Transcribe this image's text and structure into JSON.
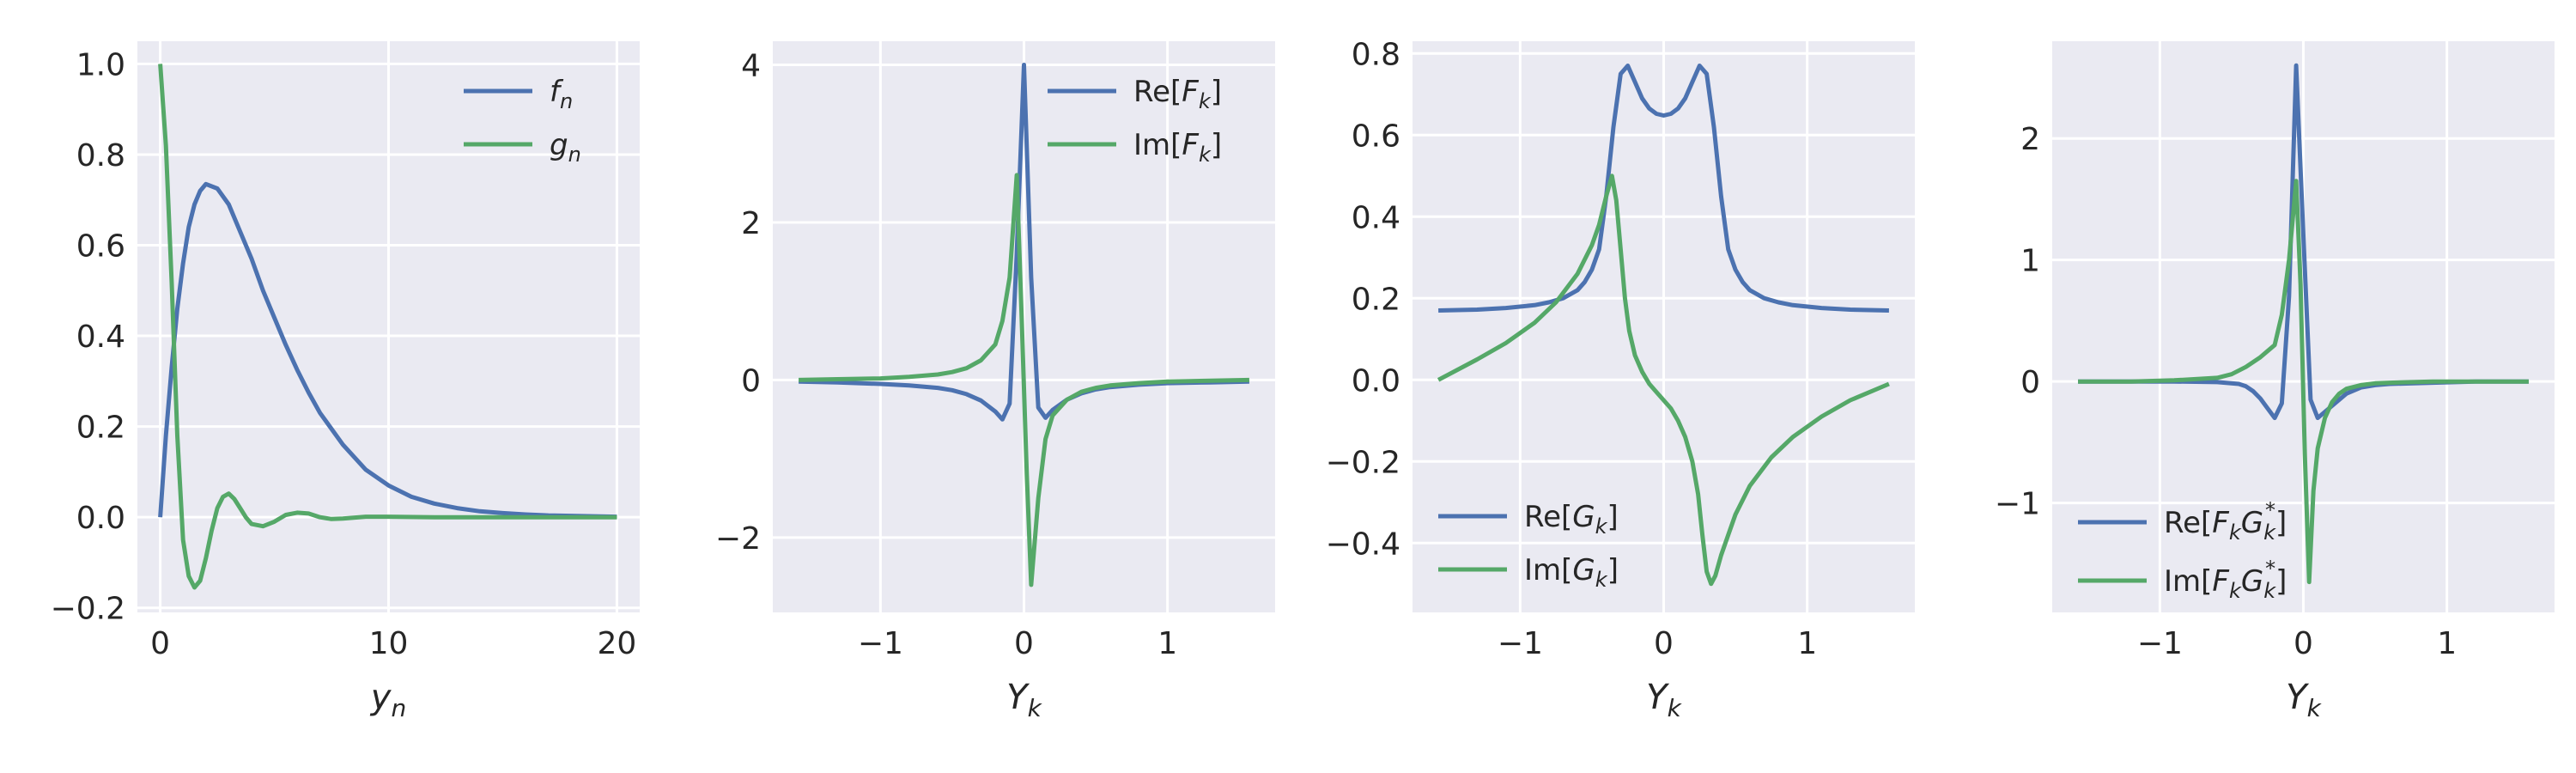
{
  "colors": {
    "background": "#eaeaf2",
    "grid": "#ffffff",
    "series1": "#4c72b0",
    "series2": "#55a868",
    "text": "#262626"
  },
  "chart_data": [
    {
      "type": "line",
      "xlabel": {
        "base": "y",
        "sub": "n"
      },
      "xlim": [
        -1,
        21
      ],
      "ylim": [
        -0.21,
        1.05
      ],
      "xticks": [
        0,
        10,
        20
      ],
      "yticks": [
        -0.2,
        0.0,
        0.2,
        0.4,
        0.6,
        0.8,
        1.0
      ],
      "xtick_labels": [
        "0",
        "10",
        "20"
      ],
      "ytick_labels": [
        "−0.2",
        "0.0",
        "0.2",
        "0.4",
        "0.6",
        "0.8",
        "1.0"
      ],
      "grid": true,
      "legend_placement": "top-right",
      "series": [
        {
          "name": {
            "base": "f",
            "sub": "n"
          },
          "color": "#4c72b0",
          "x": [
            0,
            0.25,
            0.5,
            0.75,
            1,
            1.25,
            1.5,
            1.75,
            2,
            2.5,
            3,
            3.5,
            4,
            4.5,
            5,
            5.5,
            6,
            6.5,
            7,
            8,
            9,
            10,
            11,
            12,
            13,
            14,
            15,
            16,
            17,
            18,
            19,
            20
          ],
          "y": [
            0,
            0.18,
            0.33,
            0.46,
            0.56,
            0.64,
            0.69,
            0.72,
            0.735,
            0.725,
            0.69,
            0.63,
            0.57,
            0.5,
            0.44,
            0.38,
            0.325,
            0.275,
            0.23,
            0.16,
            0.105,
            0.07,
            0.045,
            0.03,
            0.02,
            0.013,
            0.009,
            0.006,
            0.004,
            0.003,
            0.002,
            0.001
          ]
        },
        {
          "name": {
            "base": "g",
            "sub": "n"
          },
          "color": "#55a868",
          "x": [
            0,
            0.25,
            0.5,
            0.75,
            1,
            1.25,
            1.5,
            1.75,
            2,
            2.25,
            2.5,
            2.75,
            3,
            3.25,
            3.5,
            3.75,
            4,
            4.5,
            5,
            5.5,
            6,
            6.5,
            7,
            7.5,
            8,
            9,
            10,
            12,
            14,
            16,
            18,
            20
          ],
          "y": [
            1.0,
            0.82,
            0.52,
            0.18,
            -0.05,
            -0.13,
            -0.155,
            -0.14,
            -0.09,
            -0.03,
            0.02,
            0.045,
            0.052,
            0.04,
            0.02,
            0.0,
            -0.015,
            -0.02,
            -0.01,
            0.005,
            0.01,
            0.008,
            0.0,
            -0.004,
            -0.003,
            0.001,
            0.001,
            0,
            0,
            0,
            0,
            0
          ]
        }
      ]
    },
    {
      "type": "line",
      "xlabel": {
        "base": "Y",
        "sub": "k"
      },
      "xlim": [
        -1.75,
        1.75
      ],
      "ylim": [
        -2.95,
        4.3
      ],
      "xticks": [
        -1,
        0,
        1
      ],
      "yticks": [
        -2,
        0,
        2,
        4
      ],
      "xtick_labels": [
        "−1",
        "0",
        "1"
      ],
      "ytick_labels": [
        "−2",
        "0",
        "2",
        "4"
      ],
      "grid": true,
      "legend_placement": "top-right",
      "series": [
        {
          "name": {
            "pre": "Re[",
            "base": "F",
            "sub": "k",
            "post": "]"
          },
          "color": "#4c72b0",
          "x": [
            -1.57,
            -1.3,
            -1.0,
            -0.8,
            -0.6,
            -0.5,
            -0.4,
            -0.3,
            -0.2,
            -0.15,
            -0.1,
            -0.05,
            0,
            0.05,
            0.1,
            0.15,
            0.2,
            0.3,
            0.4,
            0.5,
            0.6,
            0.8,
            1.0,
            1.3,
            1.57
          ],
          "y": [
            -0.02,
            -0.03,
            -0.05,
            -0.07,
            -0.1,
            -0.13,
            -0.18,
            -0.26,
            -0.4,
            -0.5,
            -0.3,
            1.6,
            4.0,
            1.3,
            -0.35,
            -0.48,
            -0.38,
            -0.25,
            -0.17,
            -0.12,
            -0.09,
            -0.06,
            -0.04,
            -0.03,
            -0.02
          ]
        },
        {
          "name": {
            "pre": "Im[",
            "base": "F",
            "sub": "k",
            "post": "]"
          },
          "color": "#55a868",
          "x": [
            -1.57,
            -1.3,
            -1.0,
            -0.8,
            -0.6,
            -0.5,
            -0.4,
            -0.3,
            -0.2,
            -0.15,
            -0.1,
            -0.05,
            -0.02,
            0.02,
            0.05,
            0.1,
            0.15,
            0.2,
            0.3,
            0.4,
            0.5,
            0.6,
            0.8,
            1.0,
            1.3,
            1.57
          ],
          "y": [
            0.0,
            0.01,
            0.02,
            0.04,
            0.07,
            0.1,
            0.15,
            0.25,
            0.45,
            0.75,
            1.3,
            2.6,
            1.0,
            -1.2,
            -2.6,
            -1.5,
            -0.75,
            -0.45,
            -0.25,
            -0.15,
            -0.1,
            -0.07,
            -0.04,
            -0.02,
            -0.01,
            0.0
          ]
        }
      ]
    },
    {
      "type": "line",
      "xlabel": {
        "base": "Y",
        "sub": "k"
      },
      "xlim": [
        -1.75,
        1.75
      ],
      "ylim": [
        -0.57,
        0.83
      ],
      "xticks": [
        -1,
        0,
        1
      ],
      "yticks": [
        -0.4,
        -0.2,
        0.0,
        0.2,
        0.4,
        0.6,
        0.8
      ],
      "xtick_labels": [
        "−1",
        "0",
        "1"
      ],
      "ytick_labels": [
        "−0.4",
        "−0.2",
        "0.0",
        "0.2",
        "0.4",
        "0.6",
        "0.8"
      ],
      "grid": true,
      "legend_placement": "bottom-left",
      "series": [
        {
          "name": {
            "pre": "Re[",
            "base": "G",
            "sub": "k",
            "post": "]"
          },
          "color": "#4c72b0",
          "x": [
            -1.57,
            -1.3,
            -1.1,
            -0.9,
            -0.8,
            -0.7,
            -0.6,
            -0.55,
            -0.5,
            -0.45,
            -0.4,
            -0.35,
            -0.3,
            -0.25,
            -0.2,
            -0.15,
            -0.1,
            -0.05,
            0,
            0.05,
            0.1,
            0.15,
            0.2,
            0.25,
            0.3,
            0.35,
            0.4,
            0.45,
            0.5,
            0.55,
            0.6,
            0.7,
            0.8,
            0.9,
            1.1,
            1.3,
            1.57
          ],
          "y": [
            0.17,
            0.172,
            0.176,
            0.183,
            0.19,
            0.2,
            0.22,
            0.24,
            0.27,
            0.32,
            0.45,
            0.62,
            0.75,
            0.77,
            0.73,
            0.69,
            0.665,
            0.652,
            0.648,
            0.652,
            0.665,
            0.69,
            0.73,
            0.77,
            0.75,
            0.62,
            0.45,
            0.32,
            0.27,
            0.24,
            0.22,
            0.2,
            0.19,
            0.183,
            0.176,
            0.172,
            0.17
          ]
        },
        {
          "name": {
            "pre": "Im[",
            "base": "G",
            "sub": "k",
            "post": "]"
          },
          "color": "#55a868",
          "x": [
            -1.57,
            -1.3,
            -1.1,
            -0.9,
            -0.75,
            -0.6,
            -0.5,
            -0.45,
            -0.4,
            -0.36,
            -0.33,
            -0.3,
            -0.27,
            -0.24,
            -0.2,
            -0.15,
            -0.1,
            -0.05,
            0,
            0.05,
            0.1,
            0.15,
            0.2,
            0.24,
            0.27,
            0.3,
            0.33,
            0.36,
            0.4,
            0.45,
            0.5,
            0.6,
            0.75,
            0.9,
            1.1,
            1.3,
            1.57
          ],
          "y": [
            0.0,
            0.05,
            0.09,
            0.14,
            0.19,
            0.26,
            0.33,
            0.38,
            0.45,
            0.5,
            0.44,
            0.32,
            0.2,
            0.12,
            0.06,
            0.02,
            -0.01,
            -0.03,
            -0.05,
            -0.07,
            -0.1,
            -0.14,
            -0.2,
            -0.28,
            -0.38,
            -0.47,
            -0.5,
            -0.48,
            -0.43,
            -0.38,
            -0.33,
            -0.26,
            -0.19,
            -0.14,
            -0.09,
            -0.05,
            -0.01
          ]
        }
      ]
    },
    {
      "type": "line",
      "xlabel": {
        "base": "Y",
        "sub": "k"
      },
      "xlim": [
        -1.75,
        1.75
      ],
      "ylim": [
        -1.9,
        2.8
      ],
      "xticks": [
        -1,
        0,
        1
      ],
      "yticks": [
        -1,
        0,
        1,
        2
      ],
      "xtick_labels": [
        "−1",
        "0",
        "1"
      ],
      "ytick_labels": [
        "−1",
        "0",
        "1",
        "2"
      ],
      "grid": true,
      "legend_placement": "bottom-left",
      "series": [
        {
          "name": {
            "pre": "Re[",
            "base": "F",
            "sub": "k",
            "mid": "G",
            "sub2": "k",
            "sup2": "*",
            "post": "]"
          },
          "color": "#4c72b0",
          "x": [
            -1.57,
            -1.2,
            -0.9,
            -0.6,
            -0.45,
            -0.4,
            -0.35,
            -0.3,
            -0.25,
            -0.2,
            -0.15,
            -0.1,
            -0.05,
            0,
            0.05,
            0.1,
            0.15,
            0.2,
            0.3,
            0.4,
            0.5,
            0.6,
            0.9,
            1.2,
            1.57
          ],
          "y": [
            0.0,
            0.0,
            0.0,
            -0.005,
            -0.02,
            -0.04,
            -0.08,
            -0.14,
            -0.22,
            -0.3,
            -0.18,
            0.7,
            2.6,
            1.2,
            -0.15,
            -0.3,
            -0.25,
            -0.2,
            -0.1,
            -0.05,
            -0.03,
            -0.02,
            -0.01,
            0.0,
            0.0
          ]
        },
        {
          "name": {
            "pre": "Im[",
            "base": "F",
            "sub": "k",
            "mid": "G",
            "sub2": "k",
            "sup2": "*",
            "post": "]"
          },
          "color": "#55a868",
          "x": [
            -1.57,
            -1.2,
            -0.9,
            -0.6,
            -0.5,
            -0.4,
            -0.3,
            -0.25,
            -0.2,
            -0.15,
            -0.1,
            -0.05,
            -0.02,
            0.01,
            0.04,
            0.07,
            0.1,
            0.15,
            0.2,
            0.25,
            0.3,
            0.4,
            0.5,
            0.6,
            0.9,
            1.2,
            1.57
          ],
          "y": [
            0.0,
            0.0,
            0.01,
            0.03,
            0.06,
            0.12,
            0.2,
            0.25,
            0.3,
            0.55,
            1.0,
            1.65,
            0.8,
            -0.6,
            -1.65,
            -0.9,
            -0.55,
            -0.3,
            -0.17,
            -0.1,
            -0.06,
            -0.03,
            -0.015,
            -0.01,
            0.0,
            0.0,
            0.0
          ]
        }
      ]
    }
  ]
}
